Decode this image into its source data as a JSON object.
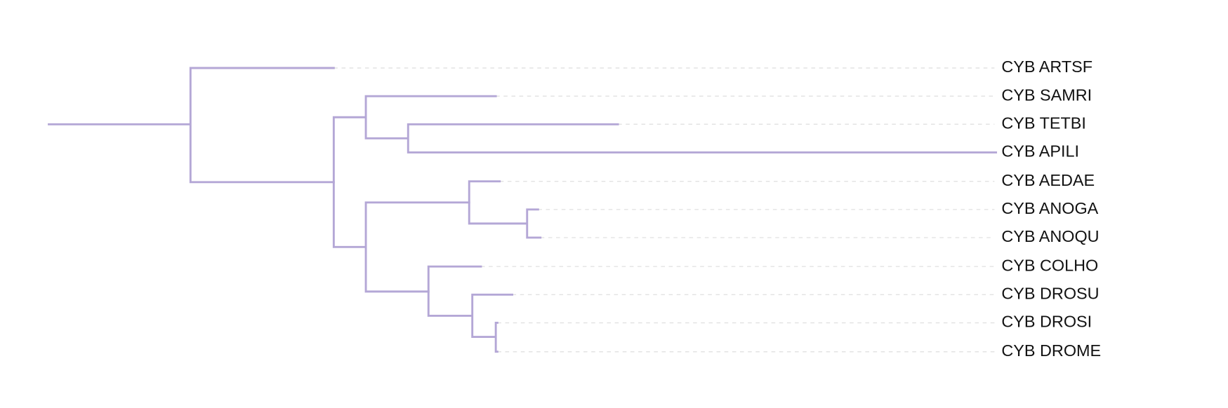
{
  "leaves": [
    "CYB ARTSF",
    "CYB SAMRI",
    "CYB TETBI",
    "CYB APILI",
    "CYB AEDAE",
    "CYB ANOGA",
    "CYB ANOQU",
    "CYB COLHO",
    "CYB DROSU",
    "CYB DROSI",
    "CYB DROME"
  ]
}
